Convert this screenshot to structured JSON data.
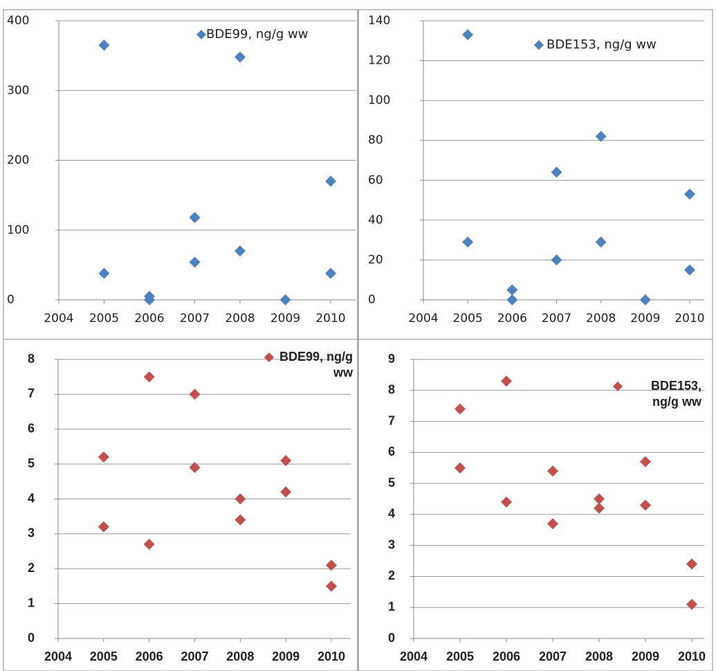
{
  "chart_data": [
    {
      "type": "scatter",
      "x": [
        2005,
        2005,
        2006,
        2006,
        2007,
        2007,
        2008,
        2008,
        2009,
        2010,
        2010
      ],
      "series": [
        {
          "name": "BDE99, ng/g ww",
          "color": "#4f81bd",
          "values": [
            365,
            38,
            5,
            0,
            118,
            54,
            348,
            70,
            0,
            170,
            38
          ]
        }
      ],
      "xlim": [
        2004,
        2010
      ],
      "xticks": [
        2004,
        2005,
        2006,
        2007,
        2008,
        2009,
        2010
      ],
      "ylim": [
        0,
        400
      ],
      "yticks": [
        0,
        100,
        200,
        300,
        400
      ],
      "grid": true,
      "legend": "top-right"
    },
    {
      "type": "scatter",
      "x": [
        2005,
        2005,
        2006,
        2006,
        2007,
        2007,
        2008,
        2008,
        2009,
        2010,
        2010
      ],
      "series": [
        {
          "name": "BDE153, ng/g ww",
          "color": "#4f81bd",
          "values": [
            133,
            29,
            5,
            0,
            64,
            20,
            82,
            29,
            0,
            53,
            15
          ]
        }
      ],
      "xlim": [
        2004,
        2010
      ],
      "xticks": [
        2004,
        2005,
        2006,
        2007,
        2008,
        2009,
        2010
      ],
      "ylim": [
        0,
        140
      ],
      "yticks": [
        0,
        20,
        40,
        60,
        80,
        100,
        120,
        140
      ],
      "grid": true,
      "legend": "top-right"
    },
    {
      "type": "scatter",
      "x": [
        2005,
        2005,
        2006,
        2006,
        2007,
        2007,
        2008,
        2008,
        2009,
        2009,
        2010,
        2010
      ],
      "series": [
        {
          "name": "BDE99, ng/g ww",
          "color": "#c0504d",
          "values": [
            5.2,
            3.2,
            7.5,
            2.7,
            7.0,
            4.9,
            4.0,
            3.4,
            5.1,
            4.2,
            2.1,
            1.5
          ]
        }
      ],
      "xlim": [
        2004,
        2010
      ],
      "xticks": [
        2004,
        2005,
        2006,
        2007,
        2008,
        2009,
        2010
      ],
      "ylim": [
        0,
        8
      ],
      "yticks": [
        0,
        1,
        2,
        3,
        4,
        5,
        6,
        7,
        8
      ],
      "grid": true,
      "legend": "top-right"
    },
    {
      "type": "scatter",
      "x": [
        2005,
        2005,
        2006,
        2006,
        2007,
        2007,
        2008,
        2008,
        2009,
        2009,
        2010,
        2010
      ],
      "series": [
        {
          "name": "BDE153, ng/g ww",
          "color": "#c0504d",
          "values": [
            7.4,
            5.5,
            8.3,
            4.4,
            5.4,
            3.7,
            4.5,
            4.2,
            5.7,
            4.3,
            2.4,
            1.1
          ]
        }
      ],
      "xlim": [
        2004,
        2010
      ],
      "xticks": [
        2004,
        2005,
        2006,
        2007,
        2008,
        2009,
        2010
      ],
      "ylim": [
        0,
        9
      ],
      "yticks": [
        0,
        1,
        2,
        3,
        4,
        5,
        6,
        7,
        8,
        9
      ],
      "grid": true,
      "legend": "top-right"
    }
  ]
}
